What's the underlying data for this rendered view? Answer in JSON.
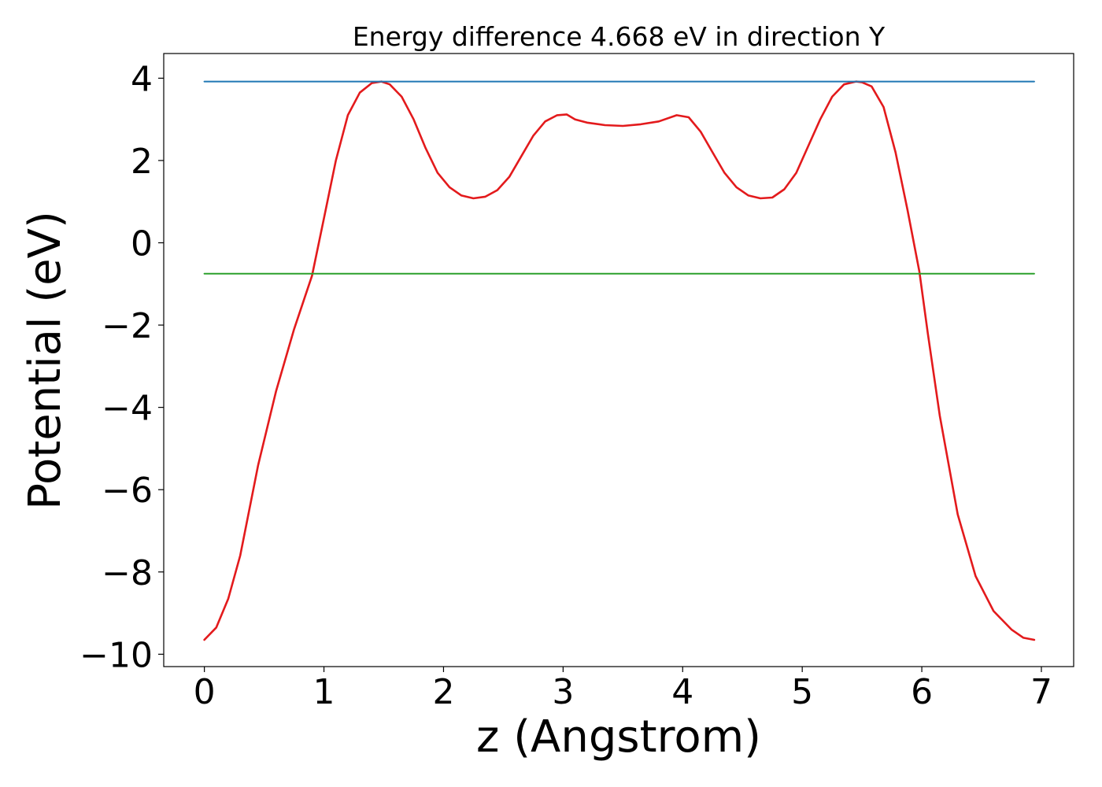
{
  "chart_data": {
    "type": "line",
    "title": "Energy difference 4.668 eV in direction Y",
    "xlabel": "z (Angstrom)",
    "ylabel": "Potential (eV)",
    "xlim": [
      -0.34,
      7.27
    ],
    "ylim": [
      -10.3,
      4.6
    ],
    "xticks": [
      0,
      1,
      2,
      3,
      4,
      5,
      6,
      7
    ],
    "xtick_labels": [
      "0",
      "1",
      "2",
      "3",
      "4",
      "5",
      "6",
      "7"
    ],
    "yticks": [
      4,
      2,
      0,
      -2,
      -4,
      -6,
      -8,
      -10
    ],
    "ytick_labels": [
      "4",
      "2",
      "0",
      "−2",
      "−4",
      "−6",
      "−8",
      "−10"
    ],
    "grid": false,
    "series": [
      {
        "name": "potential",
        "color": "#e31a1c",
        "x": [
          0.0,
          0.1,
          0.2,
          0.3,
          0.45,
          0.6,
          0.75,
          0.9,
          1.0,
          1.1,
          1.2,
          1.3,
          1.4,
          1.48,
          1.55,
          1.65,
          1.75,
          1.85,
          1.95,
          2.05,
          2.15,
          2.25,
          2.35,
          2.45,
          2.55,
          2.65,
          2.75,
          2.85,
          2.95,
          3.03,
          3.1,
          3.2,
          3.35,
          3.5,
          3.65,
          3.8,
          3.95,
          4.05,
          4.15,
          4.25,
          4.35,
          4.45,
          4.55,
          4.65,
          4.75,
          4.85,
          4.95,
          5.05,
          5.15,
          5.25,
          5.35,
          5.45,
          5.5,
          5.58,
          5.68,
          5.78,
          5.88,
          5.98,
          6.05,
          6.15,
          6.3,
          6.45,
          6.6,
          6.75,
          6.85,
          6.94
        ],
        "y": [
          -9.65,
          -9.35,
          -8.65,
          -7.6,
          -5.4,
          -3.6,
          -2.1,
          -0.8,
          0.6,
          2.0,
          3.1,
          3.65,
          3.88,
          3.92,
          3.85,
          3.55,
          3.0,
          2.3,
          1.7,
          1.35,
          1.15,
          1.08,
          1.12,
          1.28,
          1.6,
          2.1,
          2.6,
          2.95,
          3.1,
          3.12,
          3.0,
          2.92,
          2.86,
          2.84,
          2.88,
          2.95,
          3.1,
          3.05,
          2.7,
          2.2,
          1.7,
          1.35,
          1.15,
          1.08,
          1.1,
          1.3,
          1.7,
          2.35,
          3.0,
          3.55,
          3.85,
          3.92,
          3.9,
          3.8,
          3.3,
          2.2,
          0.8,
          -0.7,
          -2.2,
          -4.2,
          -6.6,
          -8.1,
          -8.95,
          -9.4,
          -9.6,
          -9.65
        ]
      },
      {
        "name": "upper level",
        "color": "#1f77b4",
        "x": [
          0.0,
          6.94
        ],
        "y": [
          3.92,
          3.92
        ]
      },
      {
        "name": "lower level",
        "color": "#2ca02c",
        "x": [
          0.0,
          6.94
        ],
        "y": [
          -0.75,
          -0.75
        ]
      }
    ]
  }
}
